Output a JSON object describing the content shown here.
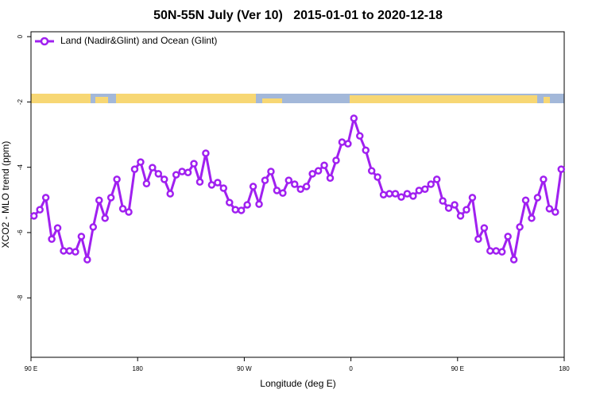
{
  "chart_data": {
    "type": "line",
    "title": "50N-55N July (Ver 10)   2015-01-01 to 2020-12-18",
    "xlabel": "Longitude (deg E)",
    "ylabel": "XCO2 - MLO trend (ppm)",
    "xlim": [
      90,
      540
    ],
    "ylim": [
      -9.82,
      0.15
    ],
    "xticks": [
      {
        "value": 90,
        "label": "90 E"
      },
      {
        "value": 180,
        "label": "180"
      },
      {
        "value": 270,
        "label": "90 W"
      },
      {
        "value": 360,
        "label": "0"
      },
      {
        "value": 450,
        "label": "90 E"
      },
      {
        "value": 540,
        "label": "180"
      }
    ],
    "yticks": [
      0,
      -2,
      -4,
      -6,
      -8
    ],
    "legend": "top-left",
    "x": [
      92.5,
      97.5,
      102.5,
      107.5,
      112.5,
      117.5,
      122.5,
      127.5,
      132.5,
      137.5,
      142.5,
      147.5,
      152.5,
      157.5,
      162.5,
      167.5,
      172.5,
      177.5,
      182.5,
      187.5,
      192.5,
      197.5,
      202.5,
      207.5,
      212.5,
      217.5,
      222.5,
      227.5,
      232.5,
      237.5,
      242.5,
      247.5,
      252.5,
      257.5,
      262.5,
      267.5,
      272.5,
      277.5,
      282.5,
      287.5,
      292.5,
      297.5,
      302.5,
      307.5,
      312.5,
      317.5,
      322.5,
      327.5,
      332.5,
      337.5,
      342.5,
      347.5,
      352.5,
      357.5,
      362.5,
      367.5,
      372.5,
      377.5,
      382.5,
      387.5,
      392.5,
      397.5,
      402.5,
      407.5,
      412.5,
      417.5,
      422.5,
      427.5,
      432.5,
      437.5,
      442.5,
      447.5,
      452.5,
      457.5,
      462.5,
      467.5,
      472.5,
      477.5,
      482.5,
      487.5,
      492.5,
      497.5,
      502.5,
      507.5,
      512.5,
      517.5,
      522.5,
      527.5,
      532.5,
      537.5
    ],
    "series": [
      {
        "name": "Land (Nadir&Glint) and Ocean (Glint)",
        "color": "#a020f0",
        "values": [
          -5.49,
          -5.3,
          -4.93,
          -6.2,
          -5.86,
          -6.56,
          -6.56,
          -6.59,
          -6.12,
          -6.83,
          -5.83,
          -5.01,
          -5.56,
          -4.93,
          -4.37,
          -5.27,
          -5.37,
          -4.06,
          -3.84,
          -4.5,
          -4.01,
          -4.2,
          -4.37,
          -4.81,
          -4.23,
          -4.13,
          -4.16,
          -3.89,
          -4.45,
          -3.57,
          -4.54,
          -4.47,
          -4.64,
          -5.08,
          -5.3,
          -5.32,
          -5.15,
          -4.59,
          -5.13,
          -4.4,
          -4.13,
          -4.71,
          -4.79,
          -4.4,
          -4.52,
          -4.67,
          -4.59,
          -4.2,
          -4.11,
          -3.94,
          -4.33,
          -3.79,
          -3.23,
          -3.28,
          -2.5,
          -3.04,
          -3.48,
          -4.11,
          -4.3,
          -4.84,
          -4.81,
          -4.81,
          -4.91,
          -4.81,
          -4.88,
          -4.71,
          -4.67,
          -4.52,
          -4.37,
          -5.03,
          -5.25,
          -5.15,
          -5.49,
          -5.3,
          -4.93,
          -6.2,
          -5.86,
          -6.56,
          -6.56,
          -6.59,
          -6.12,
          -6.83,
          -5.83,
          -5.01,
          -5.56,
          -4.93,
          -4.37,
          -5.27,
          -5.37,
          -4.06
        ]
      }
    ]
  }
}
